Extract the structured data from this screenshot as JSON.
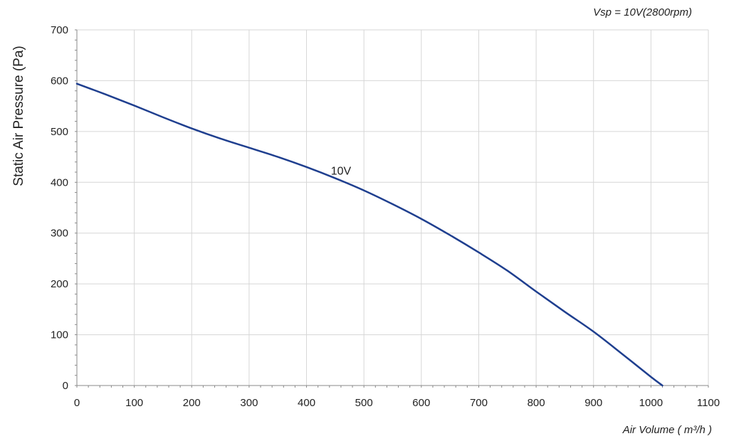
{
  "chart_data": {
    "type": "line",
    "title": "",
    "annotation": "Vsp = 10V(2800rpm)",
    "xlabel": "Air Volume ( m³/h )",
    "ylabel": "Static Air Pressure  (Pa)",
    "xlim": [
      0,
      1100
    ],
    "ylim": [
      0,
      700
    ],
    "xticks": [
      0,
      100,
      200,
      300,
      400,
      500,
      600,
      700,
      800,
      900,
      1000,
      1100
    ],
    "yticks": [
      0,
      100,
      200,
      300,
      400,
      500,
      600,
      700
    ],
    "grid": true,
    "colors": {
      "series": "#1f3f8f",
      "grid": "#d6d6d6",
      "axis": "#8a8a8a"
    },
    "series": [
      {
        "name": "10V",
        "x": [
          0,
          50,
          100,
          150,
          200,
          250,
          300,
          350,
          400,
          450,
          500,
          550,
          600,
          650,
          700,
          750,
          800,
          850,
          900,
          950,
          1000,
          1020
        ],
        "y": [
          594,
          573,
          551,
          528,
          506,
          486,
          468,
          450,
          430,
          408,
          384,
          357,
          328,
          296,
          262,
          226,
          185,
          145,
          106,
          62,
          17,
          0
        ]
      }
    ]
  }
}
